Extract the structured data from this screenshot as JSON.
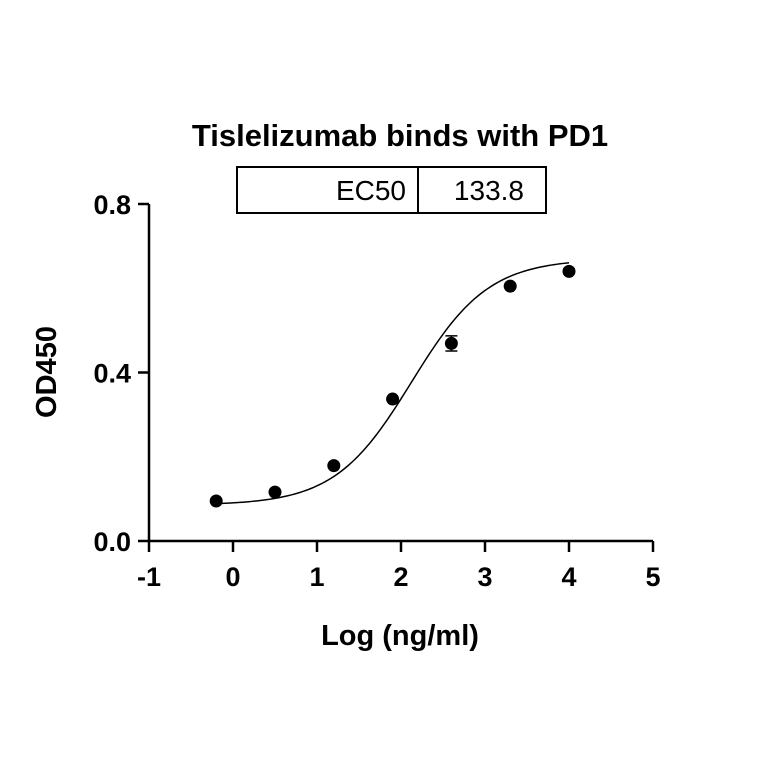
{
  "chart_data": {
    "type": "scatter",
    "title": "Tislelizumab binds with PD1",
    "xlabel": "Log (ng/ml)",
    "ylabel": "OD450",
    "xlim": [
      -1,
      5
    ],
    "ylim": [
      0,
      0.8
    ],
    "x_ticks": [
      "-1",
      "0",
      "1",
      "2",
      "3",
      "4",
      "5"
    ],
    "y_ticks": [
      "0.0",
      "0.4",
      "0.8"
    ],
    "x_tick_values": [
      -1,
      0,
      1,
      2,
      3,
      4,
      5
    ],
    "y_tick_values": [
      0,
      0.4,
      0.8
    ],
    "grid": false,
    "series": [
      {
        "x": [
          -0.2,
          0.5,
          1.2,
          1.9,
          2.6,
          3.3,
          4.0
        ],
        "y": [
          0.095,
          0.116,
          0.179,
          0.337,
          0.469,
          0.605,
          0.64
        ],
        "error": [
          0,
          0,
          0,
          0,
          0.018,
          0,
          0
        ],
        "fit": "four-parameter logistic",
        "fit_params": {
          "bottom": 0.085,
          "top": 0.67,
          "logEC50": 2.126,
          "hill": 0.95
        }
      }
    ],
    "ec50_table": {
      "label": "EC50",
      "value": "133.8"
    }
  }
}
